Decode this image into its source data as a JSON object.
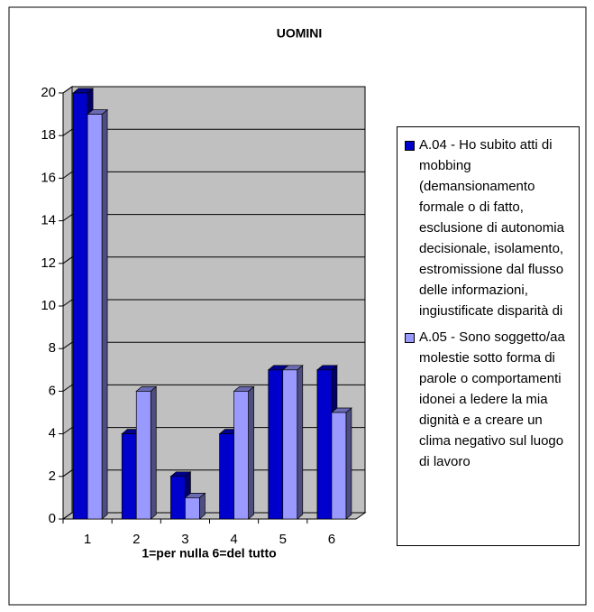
{
  "chart_data": {
    "type": "bar3d",
    "title": "UOMINI",
    "x_label": "1=per nulla   6=del tutto",
    "categories": [
      "1",
      "2",
      "3",
      "4",
      "5",
      "6"
    ],
    "series": [
      {
        "name": "A.04 - Ho subito atti di mobbing (demansionamento formale o di fatto, esclusione di autonomia decisionale, isolamento, estromissione dal flusso delle informazioni, ingiustificate disparità di",
        "color": "#0000cc",
        "values": [
          20,
          4,
          2,
          4,
          7,
          7
        ]
      },
      {
        "name": "A.05 - Sono soggetto/aa molestie sotto forma di parole o comportamenti idonei a ledere la mia dignità e a creare un clima negativo sul luogo di lavoro",
        "color": "#9999ff",
        "values": [
          19,
          6,
          1,
          6,
          7,
          5
        ]
      }
    ],
    "ylim": [
      0,
      20
    ],
    "yticks": [
      0,
      2,
      4,
      6,
      8,
      10,
      12,
      14,
      16,
      18,
      20
    ],
    "grid": true
  }
}
